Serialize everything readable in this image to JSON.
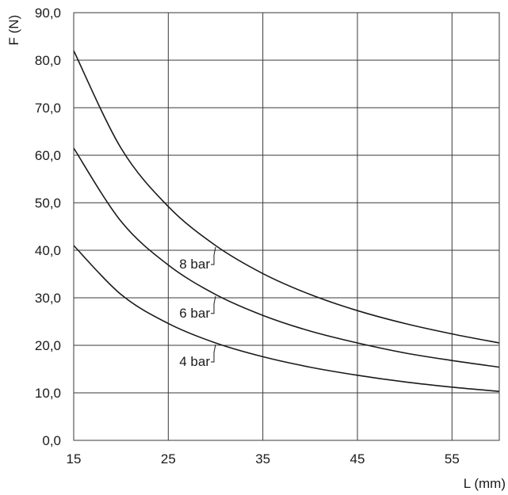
{
  "chart_data": {
    "type": "line",
    "title": "",
    "xlabel": "L (mm)",
    "ylabel": "F (N)",
    "xlim": [
      15,
      60
    ],
    "ylim": [
      0,
      90
    ],
    "x_ticks": [
      15,
      25,
      35,
      45,
      55
    ],
    "x_tick_labels": [
      "15",
      "25",
      "35",
      "45",
      "55"
    ],
    "y_ticks": [
      0,
      10,
      20,
      30,
      40,
      50,
      60,
      70,
      80,
      90
    ],
    "y_tick_labels": [
      "0,0",
      "10,0",
      "20,0",
      "30,0",
      "40,0",
      "50,0",
      "60,0",
      "70,0",
      "80,0",
      "90,0"
    ],
    "grid": true,
    "legend": "none",
    "x": [
      15,
      20,
      25,
      30,
      35,
      40,
      45,
      50,
      55,
      60
    ],
    "series": [
      {
        "name": "8 bar",
        "values": [
          82.0,
          61.5,
          49.2,
          41.0,
          35.1,
          30.7,
          27.3,
          24.6,
          22.4,
          20.5
        ],
        "label_anchor_x": 30
      },
      {
        "name": "6 bar",
        "values": [
          61.5,
          46.1,
          36.9,
          30.7,
          26.3,
          23.0,
          20.5,
          18.4,
          16.8,
          15.4
        ],
        "label_anchor_x": 30
      },
      {
        "name": "4 bar",
        "values": [
          41.0,
          30.7,
          24.6,
          20.5,
          17.6,
          15.4,
          13.7,
          12.3,
          11.2,
          10.3
        ],
        "label_anchor_x": 30
      }
    ]
  }
}
